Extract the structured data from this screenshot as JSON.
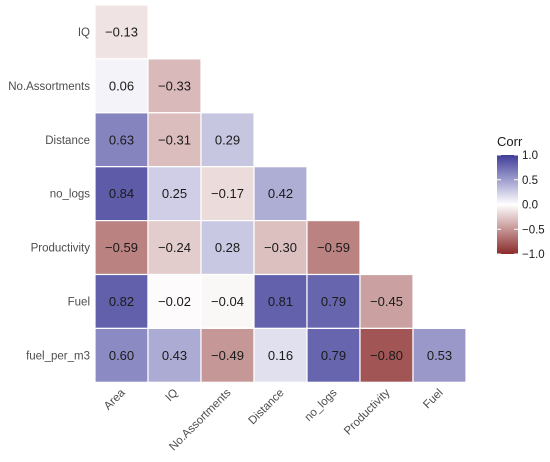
{
  "chart_data": {
    "type": "heatmap",
    "title": "",
    "x_categories": [
      "Area",
      "IQ",
      "No.Assortments",
      "Distance",
      "no_logs",
      "Productivity",
      "Fuel"
    ],
    "y_categories": [
      "IQ",
      "No.Assortments",
      "Distance",
      "no_logs",
      "Productivity",
      "Fuel",
      "fuel_per_m3"
    ],
    "values": [
      [
        -0.13
      ],
      [
        0.06,
        -0.33
      ],
      [
        0.63,
        -0.31,
        0.29
      ],
      [
        0.84,
        0.25,
        -0.17,
        0.42
      ],
      [
        -0.59,
        -0.24,
        0.28,
        -0.3,
        -0.59
      ],
      [
        0.82,
        -0.02,
        -0.04,
        0.81,
        0.79,
        -0.45
      ],
      [
        0.6,
        0.43,
        -0.49,
        0.16,
        0.79,
        -0.8,
        0.53
      ]
    ],
    "value_labels": [
      [
        "−0.13"
      ],
      [
        "0.06",
        "−0.33"
      ],
      [
        "0.63",
        "−0.31",
        "0.29"
      ],
      [
        "0.84",
        "0.25",
        "−0.17",
        "0.42"
      ],
      [
        "−0.59",
        "−0.24",
        "0.28",
        "−0.30",
        "−0.59"
      ],
      [
        "0.82",
        "−0.02",
        "−0.04",
        "0.81",
        "0.79",
        "−0.45"
      ],
      [
        "0.60",
        "0.43",
        "−0.49",
        "0.16",
        "0.79",
        "−0.80",
        "0.53"
      ]
    ],
    "legend": {
      "title": "Corr",
      "ticks": [
        1.0,
        0.5,
        0.0,
        -0.5,
        -1.0
      ],
      "tick_labels": [
        "1.0",
        "0.5",
        "0.0",
        "−0.5",
        "−1.0"
      ],
      "placement": "right"
    },
    "color_scale": {
      "low": "#8b2b2b",
      "mid": "#ffffff",
      "high": "#3f3c99",
      "range": [
        -1,
        1
      ]
    },
    "grid": false
  }
}
